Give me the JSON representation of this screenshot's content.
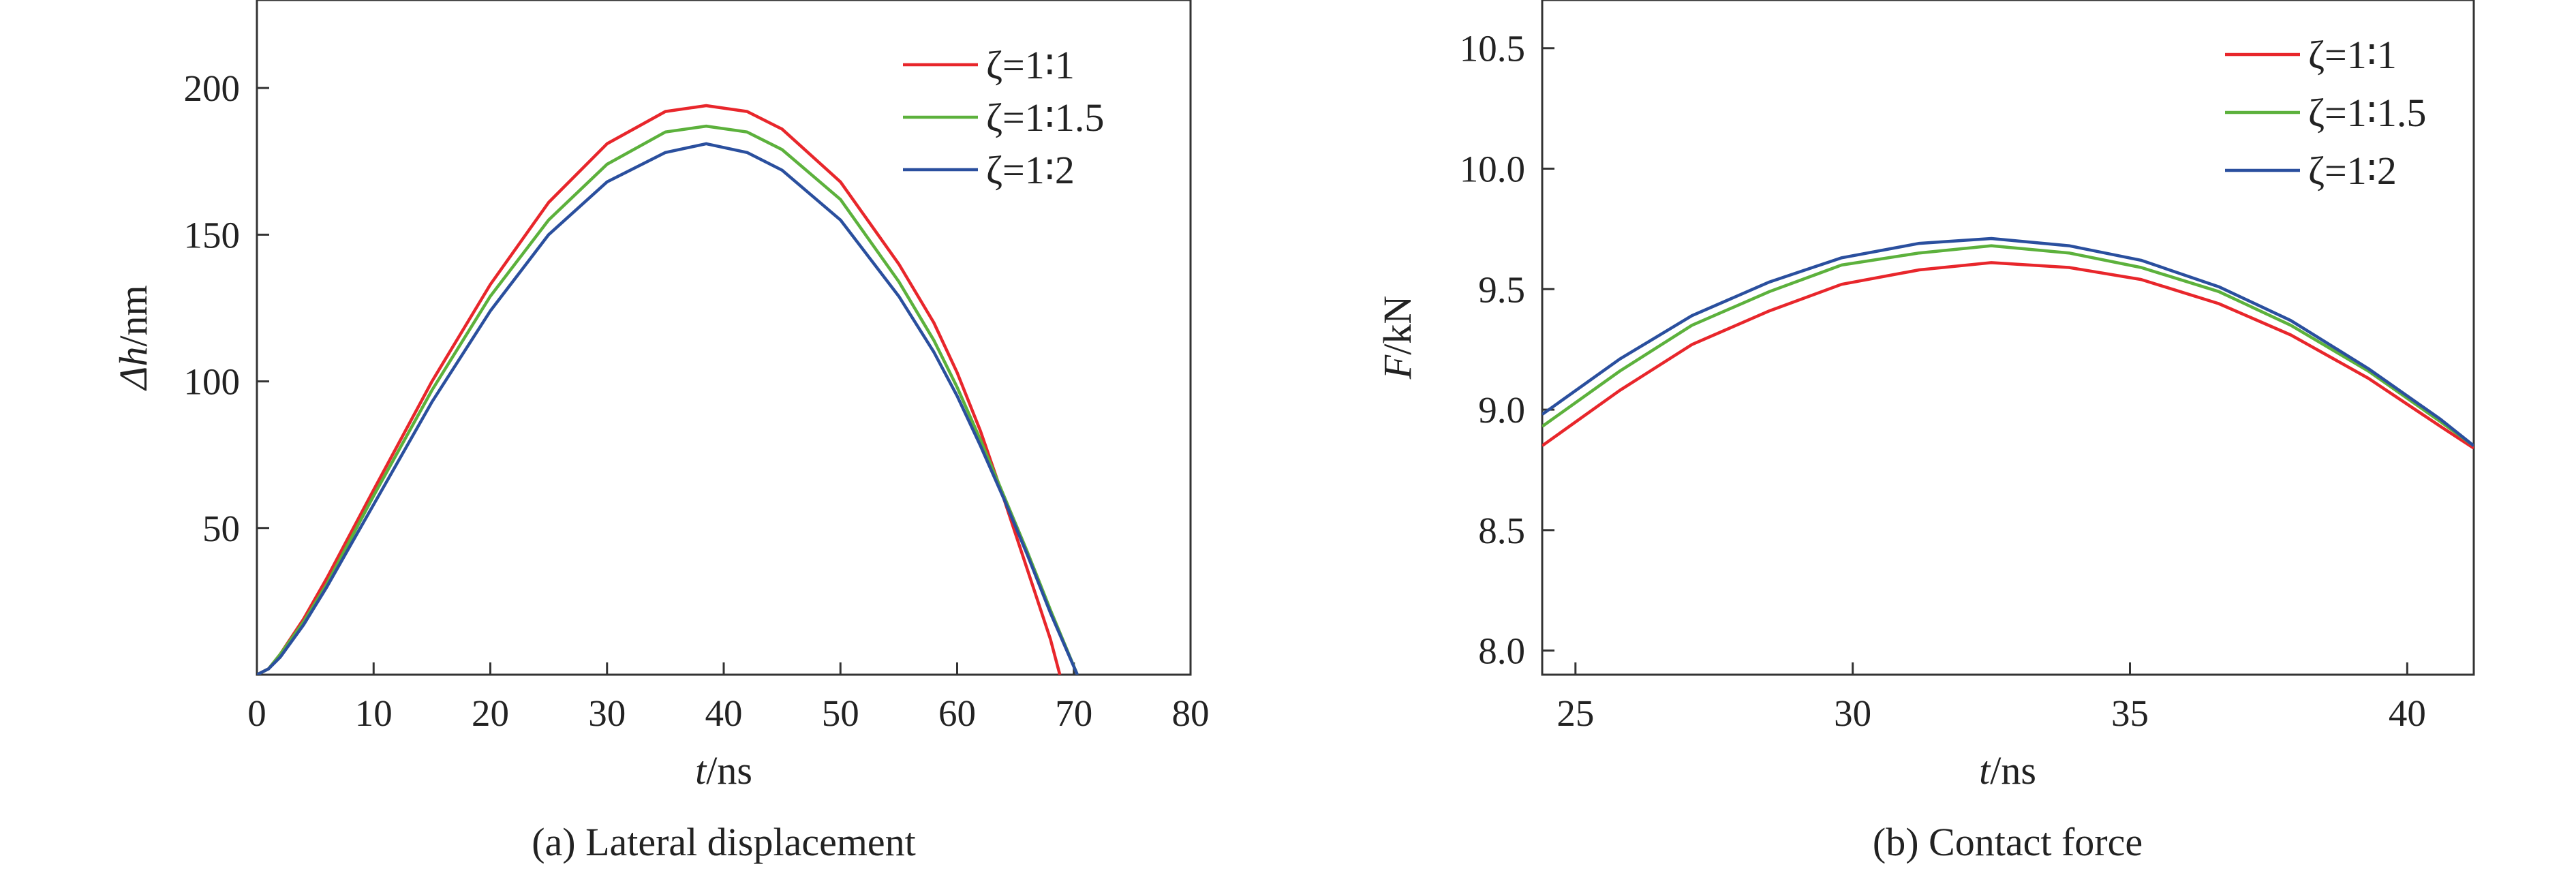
{
  "chart_data": [
    {
      "type": "line",
      "caption": "(a) Lateral displacement",
      "xlabel": {
        "var": "t",
        "unit": "/ns"
      },
      "ylabel": {
        "var": "Δh",
        "unit": "/nm"
      },
      "xlim": [
        0,
        80
      ],
      "ylim": [
        0,
        230
      ],
      "xticks": [
        "0",
        "10",
        "20",
        "30",
        "40",
        "50",
        "60",
        "70",
        "80"
      ],
      "xtick_values": [
        0,
        10,
        20,
        30,
        40,
        50,
        60,
        70,
        80
      ],
      "yticks": [
        "50",
        "100",
        "150",
        "200"
      ],
      "ytick_values": [
        50,
        100,
        150,
        200
      ],
      "grid": false,
      "legend_position": "top-right",
      "series": [
        {
          "name": "ζ=1∶1",
          "color": "#e8262b",
          "x": [
            0,
            1,
            2,
            4,
            6,
            8,
            10,
            15,
            20,
            25,
            30,
            35,
            38.5,
            42,
            45,
            50,
            55,
            58,
            60,
            62,
            64,
            66,
            68,
            68.8
          ],
          "y": [
            0,
            2,
            7,
            19,
            33,
            48,
            63,
            100,
            133,
            161,
            181,
            192,
            194,
            192,
            186,
            168,
            140,
            120,
            103,
            83,
            60,
            36,
            12,
            0
          ]
        },
        {
          "name": "ζ=1∶1.5",
          "color": "#5cb13c",
          "x": [
            0,
            1,
            2,
            4,
            6,
            8,
            10,
            15,
            20,
            25,
            30,
            35,
            38.5,
            42,
            45,
            50,
            55,
            58,
            60,
            62,
            64,
            66,
            68,
            70.3
          ],
          "y": [
            0,
            2,
            7,
            18,
            31,
            46,
            61,
            97,
            129,
            155,
            174,
            185,
            187,
            185,
            179,
            162,
            134,
            114,
            98,
            80,
            61,
            42,
            22,
            0
          ]
        },
        {
          "name": "ζ=1∶2",
          "color": "#2a4f9e",
          "x": [
            0,
            1,
            2,
            4,
            6,
            8,
            10,
            15,
            20,
            25,
            30,
            35,
            38.5,
            42,
            45,
            50,
            55,
            58,
            60,
            62,
            64,
            66,
            68,
            70.3
          ],
          "y": [
            0,
            2,
            6,
            17,
            30,
            44,
            58,
            93,
            124,
            150,
            168,
            178,
            181,
            178,
            172,
            155,
            129,
            110,
            95,
            78,
            60,
            41,
            21,
            0
          ]
        }
      ]
    },
    {
      "type": "line",
      "caption": "(b) Contact force",
      "xlabel": {
        "var": "t",
        "unit": "/ns"
      },
      "ylabel": {
        "var": "F",
        "unit": "/kN"
      },
      "xlim": [
        24.4,
        41.2
      ],
      "ylim": [
        7.9,
        10.7
      ],
      "xticks": [
        "25",
        "30",
        "35",
        "40"
      ],
      "xtick_values": [
        25,
        30,
        35,
        40
      ],
      "yticks": [
        "8.0",
        "8.5",
        "9.0",
        "9.5",
        "10.0",
        "10.5"
      ],
      "ytick_values": [
        8.0,
        8.5,
        9.0,
        9.5,
        10.0,
        10.5
      ],
      "grid": false,
      "legend_position": "top-right",
      "series": [
        {
          "name": "ζ=1∶1",
          "color": "#e8262b",
          "x": [
            24.4,
            25.8,
            27.1,
            28.5,
            29.8,
            31.2,
            32.5,
            33.9,
            35.2,
            36.6,
            37.9,
            39.3,
            40.6,
            41.2
          ],
          "y": [
            8.85,
            9.08,
            9.27,
            9.41,
            9.52,
            9.58,
            9.61,
            9.59,
            9.54,
            9.44,
            9.31,
            9.13,
            8.93,
            8.84
          ]
        },
        {
          "name": "ζ=1∶1.5",
          "color": "#5cb13c",
          "x": [
            24.4,
            25.8,
            27.1,
            28.5,
            29.8,
            31.2,
            32.5,
            33.9,
            35.2,
            36.6,
            37.9,
            39.3,
            40.6,
            41.2
          ],
          "y": [
            8.93,
            9.16,
            9.35,
            9.49,
            9.6,
            9.65,
            9.68,
            9.65,
            9.59,
            9.49,
            9.35,
            9.16,
            8.95,
            8.85
          ]
        },
        {
          "name": "ζ=1∶2",
          "color": "#2a4f9e",
          "x": [
            24.4,
            25.8,
            27.1,
            28.5,
            29.8,
            31.2,
            32.5,
            33.9,
            35.2,
            36.6,
            37.9,
            39.3,
            40.6,
            41.2
          ],
          "y": [
            8.98,
            9.21,
            9.39,
            9.53,
            9.63,
            9.69,
            9.71,
            9.68,
            9.62,
            9.51,
            9.37,
            9.17,
            8.96,
            8.85
          ]
        }
      ]
    }
  ]
}
